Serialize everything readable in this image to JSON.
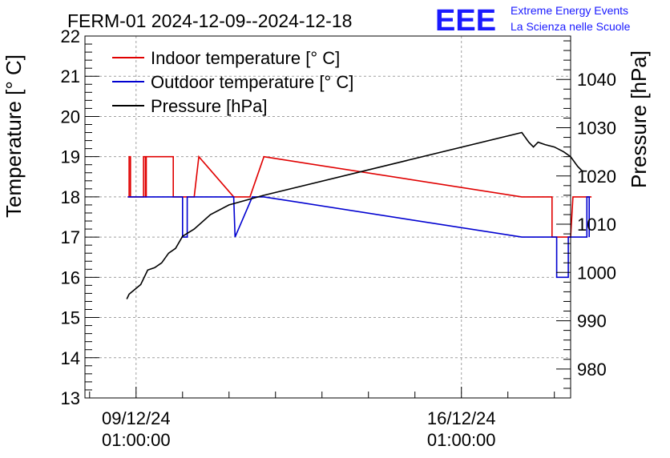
{
  "title": "FERM-01 2024-12-09--2024-12-18",
  "logo": {
    "text": "EEE",
    "line1": "Extreme Energy Events",
    "line2": "La Scienza nelle Scuole",
    "color": "#1a1aff"
  },
  "chart_data": {
    "type": "line",
    "x_ticks": [
      {
        "date": "09/12/24",
        "time": "01:00:00",
        "x": 0
      },
      {
        "date": "16/12/24",
        "time": "01:00:00",
        "x": 7
      }
    ],
    "xlim": [
      -1.1,
      9.35
    ],
    "left_axis": {
      "label": "Temperature [° C]",
      "lim": [
        13,
        22
      ],
      "ticks": [
        13,
        14,
        15,
        16,
        17,
        18,
        19,
        20,
        21,
        22
      ]
    },
    "right_axis": {
      "label": "Pressure [hPa]",
      "lim": [
        974,
        1049
      ],
      "ticks": [
        980,
        990,
        1000,
        1010,
        1020,
        1030,
        1040
      ]
    },
    "grid": true,
    "legend_placement": "top-left",
    "series": [
      {
        "name": "Indoor temperature [° C]",
        "axis": "left",
        "color": "#e00000",
        "points": [
          [
            -0.18,
            18
          ],
          [
            -0.15,
            18
          ],
          [
            -0.15,
            19
          ],
          [
            -0.12,
            19
          ],
          [
            -0.12,
            18
          ],
          [
            0.16,
            18
          ],
          [
            0.16,
            19
          ],
          [
            0.2,
            19
          ],
          [
            0.2,
            18
          ],
          [
            0.22,
            18
          ],
          [
            0.22,
            19
          ],
          [
            0.8,
            19
          ],
          [
            0.8,
            18
          ],
          [
            1.25,
            18
          ],
          [
            1.35,
            19
          ],
          [
            2.1,
            18
          ],
          [
            2.45,
            18
          ],
          [
            2.75,
            19
          ],
          [
            8.3,
            18
          ],
          [
            8.95,
            18
          ],
          [
            8.95,
            17
          ],
          [
            9.35,
            17
          ],
          [
            9.4,
            18
          ],
          [
            9.8,
            18
          ]
        ]
      },
      {
        "name": "Outdoor temperature [° C]",
        "axis": "left",
        "color": "#0000d0",
        "points": [
          [
            -0.18,
            18
          ],
          [
            1.0,
            18
          ],
          [
            1.0,
            17
          ],
          [
            1.1,
            17
          ],
          [
            1.1,
            18
          ],
          [
            2.1,
            18
          ],
          [
            2.13,
            17
          ],
          [
            2.5,
            18
          ],
          [
            2.75,
            18
          ],
          [
            8.3,
            17
          ],
          [
            9.05,
            17
          ],
          [
            9.05,
            16
          ],
          [
            9.3,
            16
          ],
          [
            9.3,
            17
          ],
          [
            9.7,
            17
          ],
          [
            9.7,
            18
          ],
          [
            9.75,
            18
          ],
          [
            9.75,
            17
          ]
        ]
      },
      {
        "name": "Pressure [hPa]",
        "axis": "right",
        "color": "#000000",
        "points": [
          [
            -0.2,
            994.5
          ],
          [
            -0.15,
            995.5
          ],
          [
            0.1,
            997.5
          ],
          [
            0.25,
            1000.5
          ],
          [
            0.4,
            1001
          ],
          [
            0.55,
            1002
          ],
          [
            0.7,
            1004
          ],
          [
            0.85,
            1005
          ],
          [
            1.0,
            1007.5
          ],
          [
            1.25,
            1009
          ],
          [
            1.6,
            1012
          ],
          [
            2.0,
            1014
          ],
          [
            2.75,
            1016
          ],
          [
            8.3,
            1029
          ],
          [
            8.45,
            1027
          ],
          [
            8.55,
            1026
          ],
          [
            8.65,
            1027
          ],
          [
            8.8,
            1026.5
          ],
          [
            9.0,
            1026
          ],
          [
            9.2,
            1025
          ],
          [
            9.35,
            1024
          ],
          [
            9.5,
            1022
          ],
          [
            9.6,
            1021
          ],
          [
            9.7,
            1021
          ]
        ]
      }
    ]
  }
}
